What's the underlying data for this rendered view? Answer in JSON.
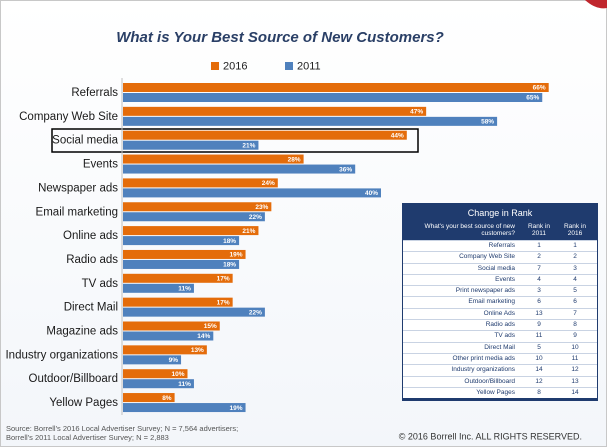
{
  "chart_data": {
    "type": "bar",
    "orientation": "horizontal",
    "title": "What is Your Best Source of New Customers?",
    "categories": [
      "Referrals",
      "Company Web Site",
      "Social media",
      "Events",
      "Newspaper ads",
      "Email marketing",
      "Online ads",
      "Radio ads",
      "TV ads",
      "Direct Mail",
      "Magazine ads",
      "Industry organizations",
      "Outdoor/Billboard",
      "Yellow Pages"
    ],
    "series": [
      {
        "name": "2016",
        "color": "#e46c0a",
        "values": [
          66,
          47,
          44,
          28,
          24,
          23,
          21,
          19,
          17,
          17,
          15,
          13,
          10,
          8
        ],
        "value_labels": [
          "66%",
          "47%",
          "44%",
          "28%",
          "24%",
          "23%",
          "21%",
          "19%",
          "17%",
          "17%",
          "15%",
          "13%",
          "10%",
          "8%"
        ]
      },
      {
        "name": "2011",
        "color": "#4f81bd",
        "values": [
          65,
          58,
          21,
          36,
          40,
          22,
          18,
          18,
          11,
          22,
          14,
          9,
          11,
          19
        ],
        "value_labels": [
          "65%",
          "58%",
          "21%",
          "36%",
          "40%",
          "22%",
          "18%",
          "18%",
          "11%",
          "22%",
          "14%",
          "9%",
          "11%",
          "19%"
        ]
      }
    ],
    "source": [
      "Source:  Borrell's 2016 Local Advertiser Survey; N = 7,564 advertisers;",
      "Borrell's 2011 Local Advertiser Survey; N = 2,883"
    ],
    "copyright": "© 2016 Borrell Inc.  ALL RIGHTS RESERVED."
  },
  "table": {
    "title": "Change in Rank",
    "header": [
      "What's your best source of new customers?",
      "Rank in 2011",
      "Rank in 2016"
    ],
    "rows": [
      [
        "Referrals",
        1,
        1
      ],
      [
        "Company Web Site",
        2,
        2
      ],
      [
        "Social media",
        7,
        3
      ],
      [
        "Events",
        4,
        4
      ],
      [
        "Print newspaper ads",
        3,
        5
      ],
      [
        "Email marketing",
        6,
        6
      ],
      [
        "Online Ads",
        13,
        7
      ],
      [
        "Radio ads",
        9,
        8
      ],
      [
        "TV ads",
        11,
        9
      ],
      [
        "Direct Mail",
        5,
        10
      ],
      [
        "Other print media ads",
        10,
        11
      ],
      [
        "Industry organizations",
        14,
        12
      ],
      [
        "Outdoor/Billboard",
        12,
        13
      ],
      [
        "Yellow Pages",
        8,
        14
      ]
    ]
  }
}
